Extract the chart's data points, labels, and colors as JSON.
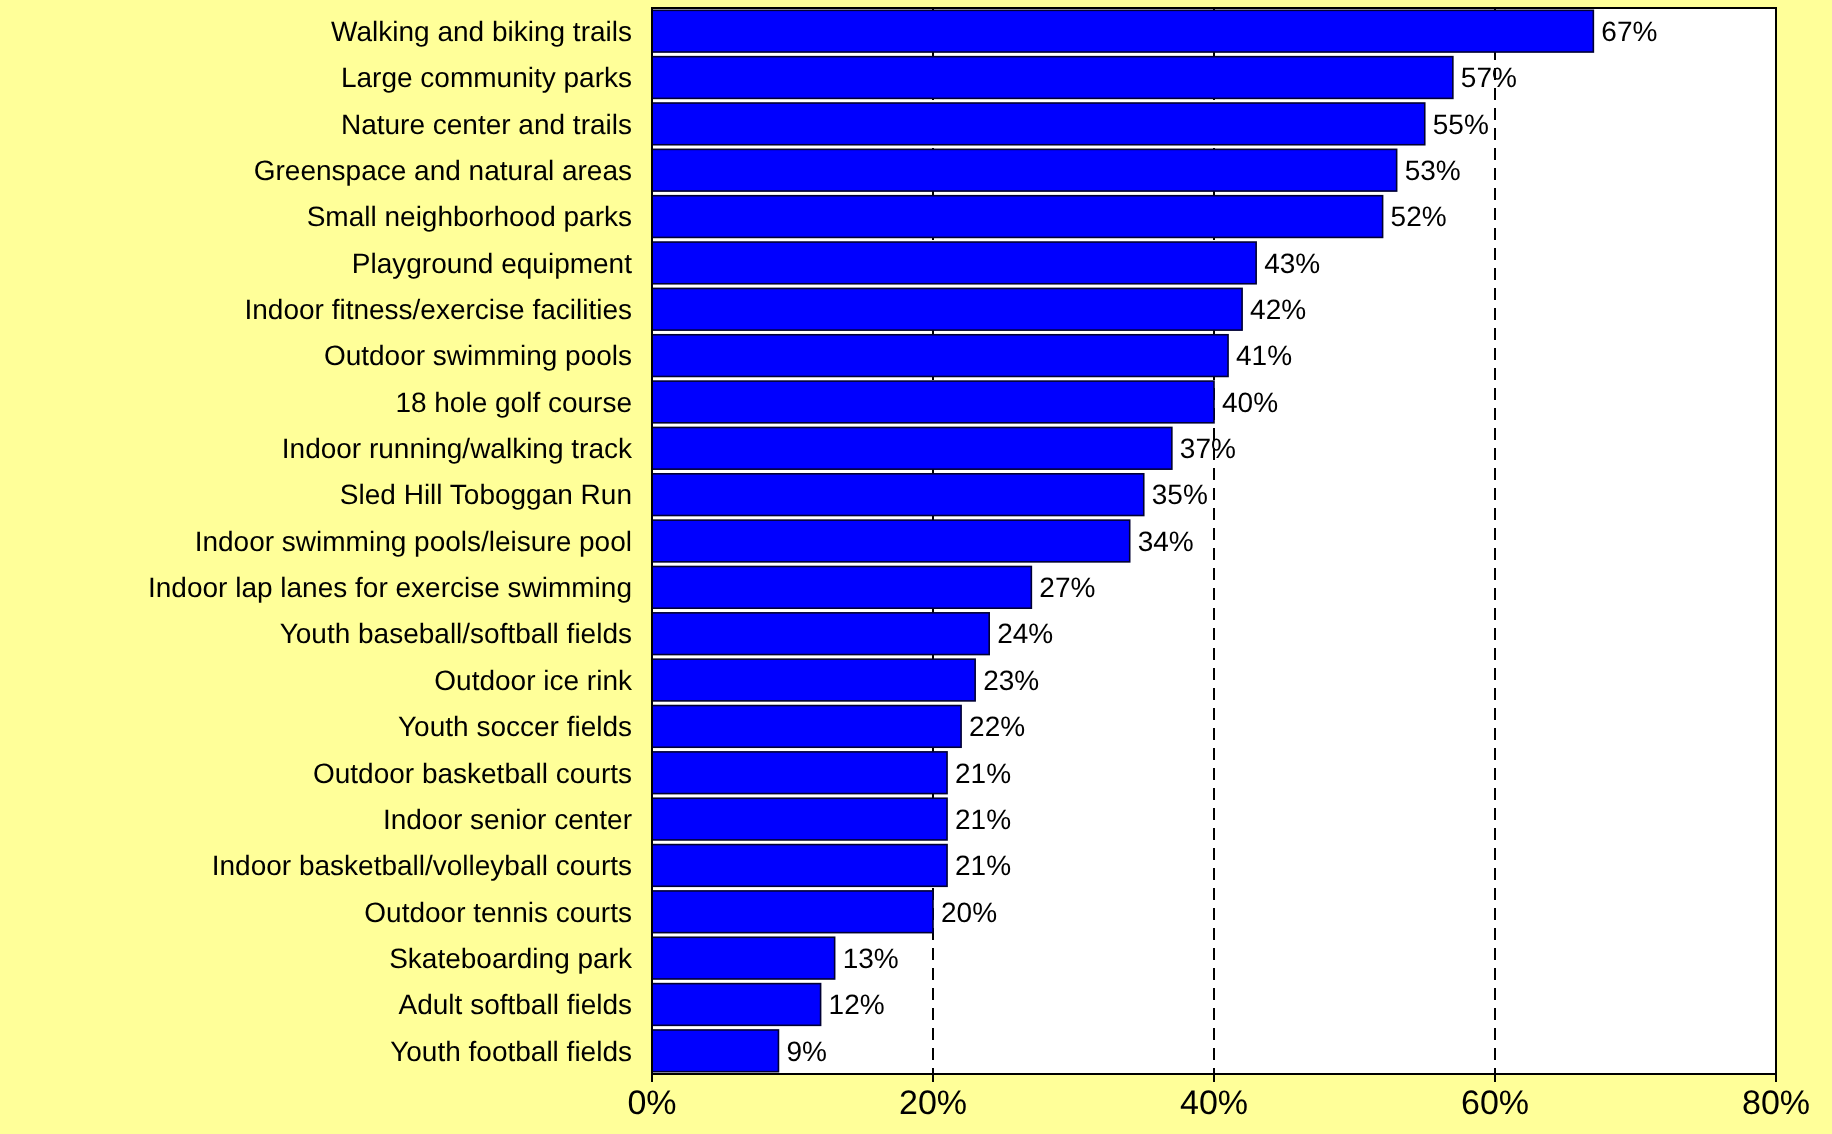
{
  "chart_data": {
    "type": "bar",
    "orientation": "horizontal",
    "categories": [
      "Walking and biking trails",
      "Large community parks",
      "Nature center and trails",
      "Greenspace and natural areas",
      "Small neighborhood parks",
      "Playground equipment",
      "Indoor fitness/exercise facilities",
      "Outdoor swimming pools",
      "18 hole golf course",
      "Indoor running/walking track",
      "Sled Hill Toboggan Run",
      "Indoor swimming pools/leisure pool",
      "Indoor lap lanes for exercise swimming",
      "Youth baseball/softball fields",
      "Outdoor ice rink",
      "Youth soccer fields",
      "Outdoor basketball courts",
      "Indoor senior center",
      "Indoor basketball/volleyball courts",
      "Outdoor tennis courts",
      "Skateboarding park",
      "Adult softball fields",
      "Youth football fields"
    ],
    "values": [
      67,
      57,
      55,
      53,
      52,
      43,
      42,
      41,
      40,
      37,
      35,
      34,
      27,
      24,
      23,
      22,
      21,
      21,
      21,
      20,
      13,
      12,
      9
    ],
    "value_labels": [
      "67%",
      "57%",
      "55%",
      "53%",
      "52%",
      "43%",
      "42%",
      "41%",
      "40%",
      "37%",
      "35%",
      "34%",
      "27%",
      "24%",
      "23%",
      "22%",
      "21%",
      "21%",
      "21%",
      "20%",
      "13%",
      "12%",
      "9%"
    ],
    "color": "#0000ff",
    "xlim": [
      0,
      80
    ],
    "xticks": [
      {
        "value": 0,
        "label": "0%"
      },
      {
        "value": 20,
        "label": "20%"
      },
      {
        "value": 40,
        "label": "40%"
      },
      {
        "value": 60,
        "label": "60%"
      },
      {
        "value": 80,
        "label": "80%"
      }
    ],
    "grid": "x"
  }
}
